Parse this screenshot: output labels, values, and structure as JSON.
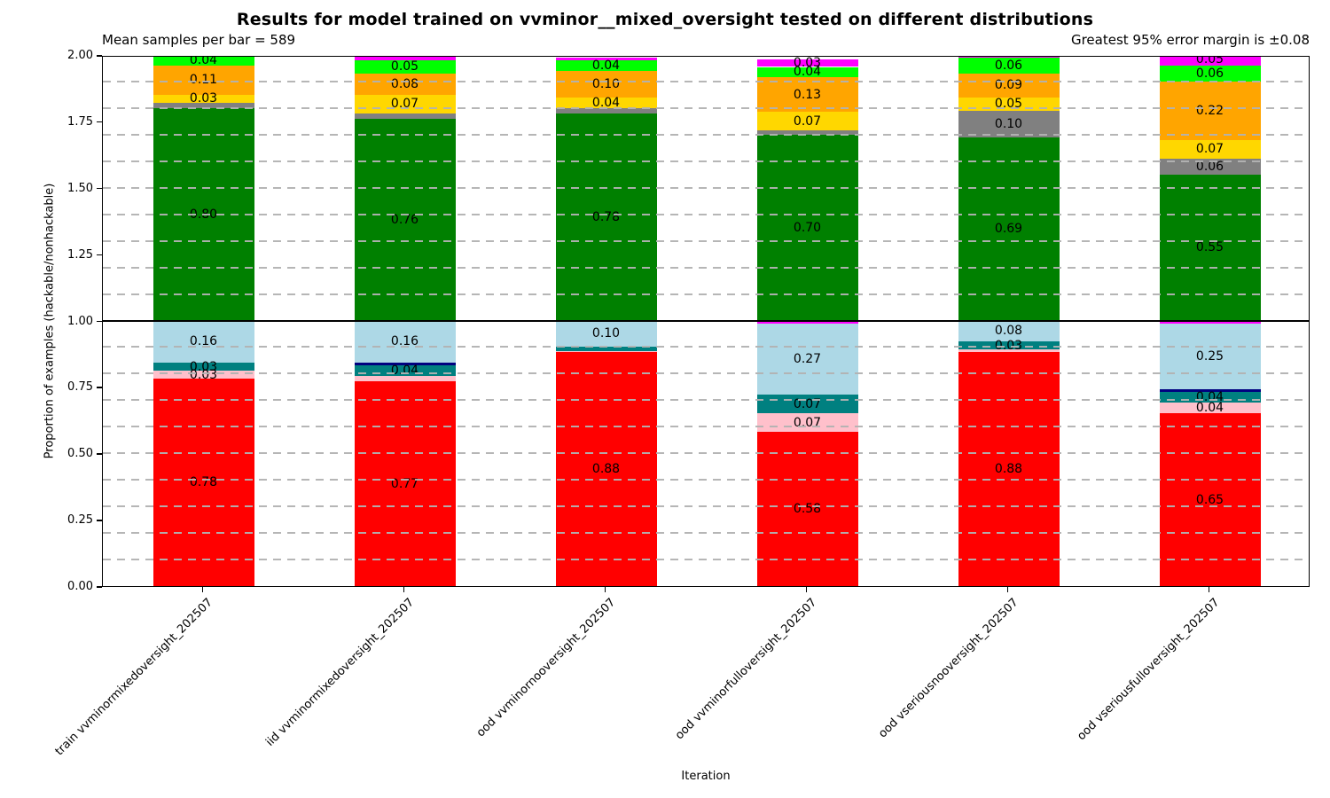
{
  "header": {
    "title": "Results for model trained on vvminor__mixed_oversight tested on different distributions",
    "subtitle_left": "Mean samples per bar = 589",
    "subtitle_right": "Greatest 95% error margin is ±0.08"
  },
  "chart_data": {
    "type": "bar",
    "stacked": true,
    "title": "Results for model trained on vvminor__mixed_oversight tested on different distributions",
    "annotations": {
      "mean_samples_per_bar": 589,
      "greatest_95pct_error_margin": 0.08
    },
    "xlabel": "Iteration",
    "ylabel": "Proportion of examples (hackable/nonhackable)",
    "ylim": [
      0,
      2
    ],
    "yticks": [
      "0.00",
      "0.25",
      "0.50",
      "0.75",
      "1.00",
      "1.25",
      "1.50",
      "1.75",
      "2.00"
    ],
    "minor_grid_step": 0.1,
    "grid": "dashed horizontal every 0.1, drawn over bars",
    "reference_line_y": 1.0,
    "legend": "none",
    "colors": {
      "red": "#ff0000",
      "pink": "#ffc0cb",
      "teal": "#008080",
      "navy": "#000080",
      "lightblue": "#add8e6",
      "green": "#008000",
      "gray": "#808080",
      "gold": "#ffd700",
      "orange": "#ffa500",
      "lime": "#00ff00",
      "magenta": "#ff00ff"
    },
    "categories": [
      "train vvminormixedoversight_202507",
      "iid vvminormixedoversight_202507",
      "ood vvminornooversight_202507",
      "ood vvminorfulloversight_202507",
      "ood vseriousnooversight_202507",
      "ood vseriousfulloversight_202507"
    ],
    "bars": [
      {
        "category": "train vvminormixedoversight_202507",
        "bottom_half": [
          {
            "color": "red",
            "value": 0.78,
            "label": "0.78"
          },
          {
            "color": "pink",
            "value": 0.03,
            "label": "0.03"
          },
          {
            "color": "teal",
            "value": 0.03,
            "label": "0.03"
          },
          {
            "color": "lightblue",
            "value": 0.16,
            "label": "0.16"
          }
        ],
        "top_half": [
          {
            "color": "green",
            "value": 0.8,
            "label": "0.80"
          },
          {
            "color": "gray",
            "value": 0.02
          },
          {
            "color": "gold",
            "value": 0.03,
            "label": "0.03"
          },
          {
            "color": "orange",
            "value": 0.11,
            "label": "0.11"
          },
          {
            "color": "lime",
            "value": 0.04,
            "label": "0.04"
          }
        ]
      },
      {
        "category": "iid vvminormixedoversight_202507",
        "bottom_half": [
          {
            "color": "red",
            "value": 0.77,
            "label": "0.77"
          },
          {
            "color": "pink",
            "value": 0.02
          },
          {
            "color": "teal",
            "value": 0.04,
            "label": "0.04"
          },
          {
            "color": "navy",
            "value": 0.01
          },
          {
            "color": "lightblue",
            "value": 0.16,
            "label": "0.16"
          }
        ],
        "top_half": [
          {
            "color": "green",
            "value": 0.76,
            "label": "0.76"
          },
          {
            "color": "gray",
            "value": 0.02
          },
          {
            "color": "gold",
            "value": 0.07,
            "label": "0.07"
          },
          {
            "color": "orange",
            "value": 0.08,
            "label": "0.08"
          },
          {
            "color": "lime",
            "value": 0.05,
            "label": "0.05"
          },
          {
            "color": "magenta",
            "value": 0.015
          }
        ]
      },
      {
        "category": "ood vvminornooversight_202507",
        "bottom_half": [
          {
            "color": "red",
            "value": 0.88,
            "label": "0.88"
          },
          {
            "color": "pink",
            "value": 0.005
          },
          {
            "color": "teal",
            "value": 0.015
          },
          {
            "color": "lightblue",
            "value": 0.1,
            "label": "0.10"
          }
        ],
        "top_half": [
          {
            "color": "green",
            "value": 0.78,
            "label": "0.78"
          },
          {
            "color": "gray",
            "value": 0.02
          },
          {
            "color": "gold",
            "value": 0.04,
            "label": "0.04"
          },
          {
            "color": "orange",
            "value": 0.1,
            "label": "0.10"
          },
          {
            "color": "lime",
            "value": 0.04,
            "label": "0.04"
          },
          {
            "color": "magenta",
            "value": 0.01
          }
        ]
      },
      {
        "category": "ood vvminorfulloversight_202507",
        "bottom_half": [
          {
            "color": "red",
            "value": 0.58,
            "label": "0.58"
          },
          {
            "color": "pink",
            "value": 0.07,
            "label": "0.07"
          },
          {
            "color": "teal",
            "value": 0.07,
            "label": "0.07"
          },
          {
            "color": "lightblue",
            "value": 0.27,
            "label": "0.27"
          },
          {
            "color": "magenta",
            "value": 0.01
          }
        ],
        "top_half": [
          {
            "color": "green",
            "value": 0.7,
            "label": "0.70"
          },
          {
            "color": "gray",
            "value": 0.015
          },
          {
            "color": "gold",
            "value": 0.07,
            "label": "0.07"
          },
          {
            "color": "orange",
            "value": 0.13,
            "label": "0.13"
          },
          {
            "color": "lime",
            "value": 0.04,
            "label": "0.04"
          },
          {
            "color": "magenta",
            "value": 0.03,
            "label": "0.03"
          }
        ]
      },
      {
        "category": "ood vseriousnooversight_202507",
        "bottom_half": [
          {
            "color": "red",
            "value": 0.88,
            "label": "0.88"
          },
          {
            "color": "pink",
            "value": 0.01
          },
          {
            "color": "teal",
            "value": 0.03,
            "label": "0.03"
          },
          {
            "color": "lightblue",
            "value": 0.08,
            "label": "0.08"
          }
        ],
        "top_half": [
          {
            "color": "green",
            "value": 0.69,
            "label": "0.69"
          },
          {
            "color": "gray",
            "value": 0.1,
            "label": "0.10"
          },
          {
            "color": "gold",
            "value": 0.05,
            "label": "0.05"
          },
          {
            "color": "orange",
            "value": 0.09,
            "label": "0.09"
          },
          {
            "color": "lime",
            "value": 0.06,
            "label": "0.06"
          },
          {
            "color": "magenta",
            "value": 0.01
          }
        ]
      },
      {
        "category": "ood vseriousfulloversight_202507",
        "bottom_half": [
          {
            "color": "red",
            "value": 0.65,
            "label": "0.65"
          },
          {
            "color": "pink",
            "value": 0.04,
            "label": "0.04"
          },
          {
            "color": "teal",
            "value": 0.04,
            "label": "0.04"
          },
          {
            "color": "navy",
            "value": 0.01
          },
          {
            "color": "lightblue",
            "value": 0.25,
            "label": "0.25"
          },
          {
            "color": "magenta",
            "value": 0.005
          }
        ],
        "top_half": [
          {
            "color": "green",
            "value": 0.55,
            "label": "0.55"
          },
          {
            "color": "gray",
            "value": 0.06,
            "label": "0.06"
          },
          {
            "color": "gold",
            "value": 0.07,
            "label": "0.07"
          },
          {
            "color": "orange",
            "value": 0.22,
            "label": "0.22"
          },
          {
            "color": "lime",
            "value": 0.06,
            "label": "0.06"
          },
          {
            "color": "magenta",
            "value": 0.05,
            "label": "0.05"
          }
        ]
      }
    ]
  }
}
